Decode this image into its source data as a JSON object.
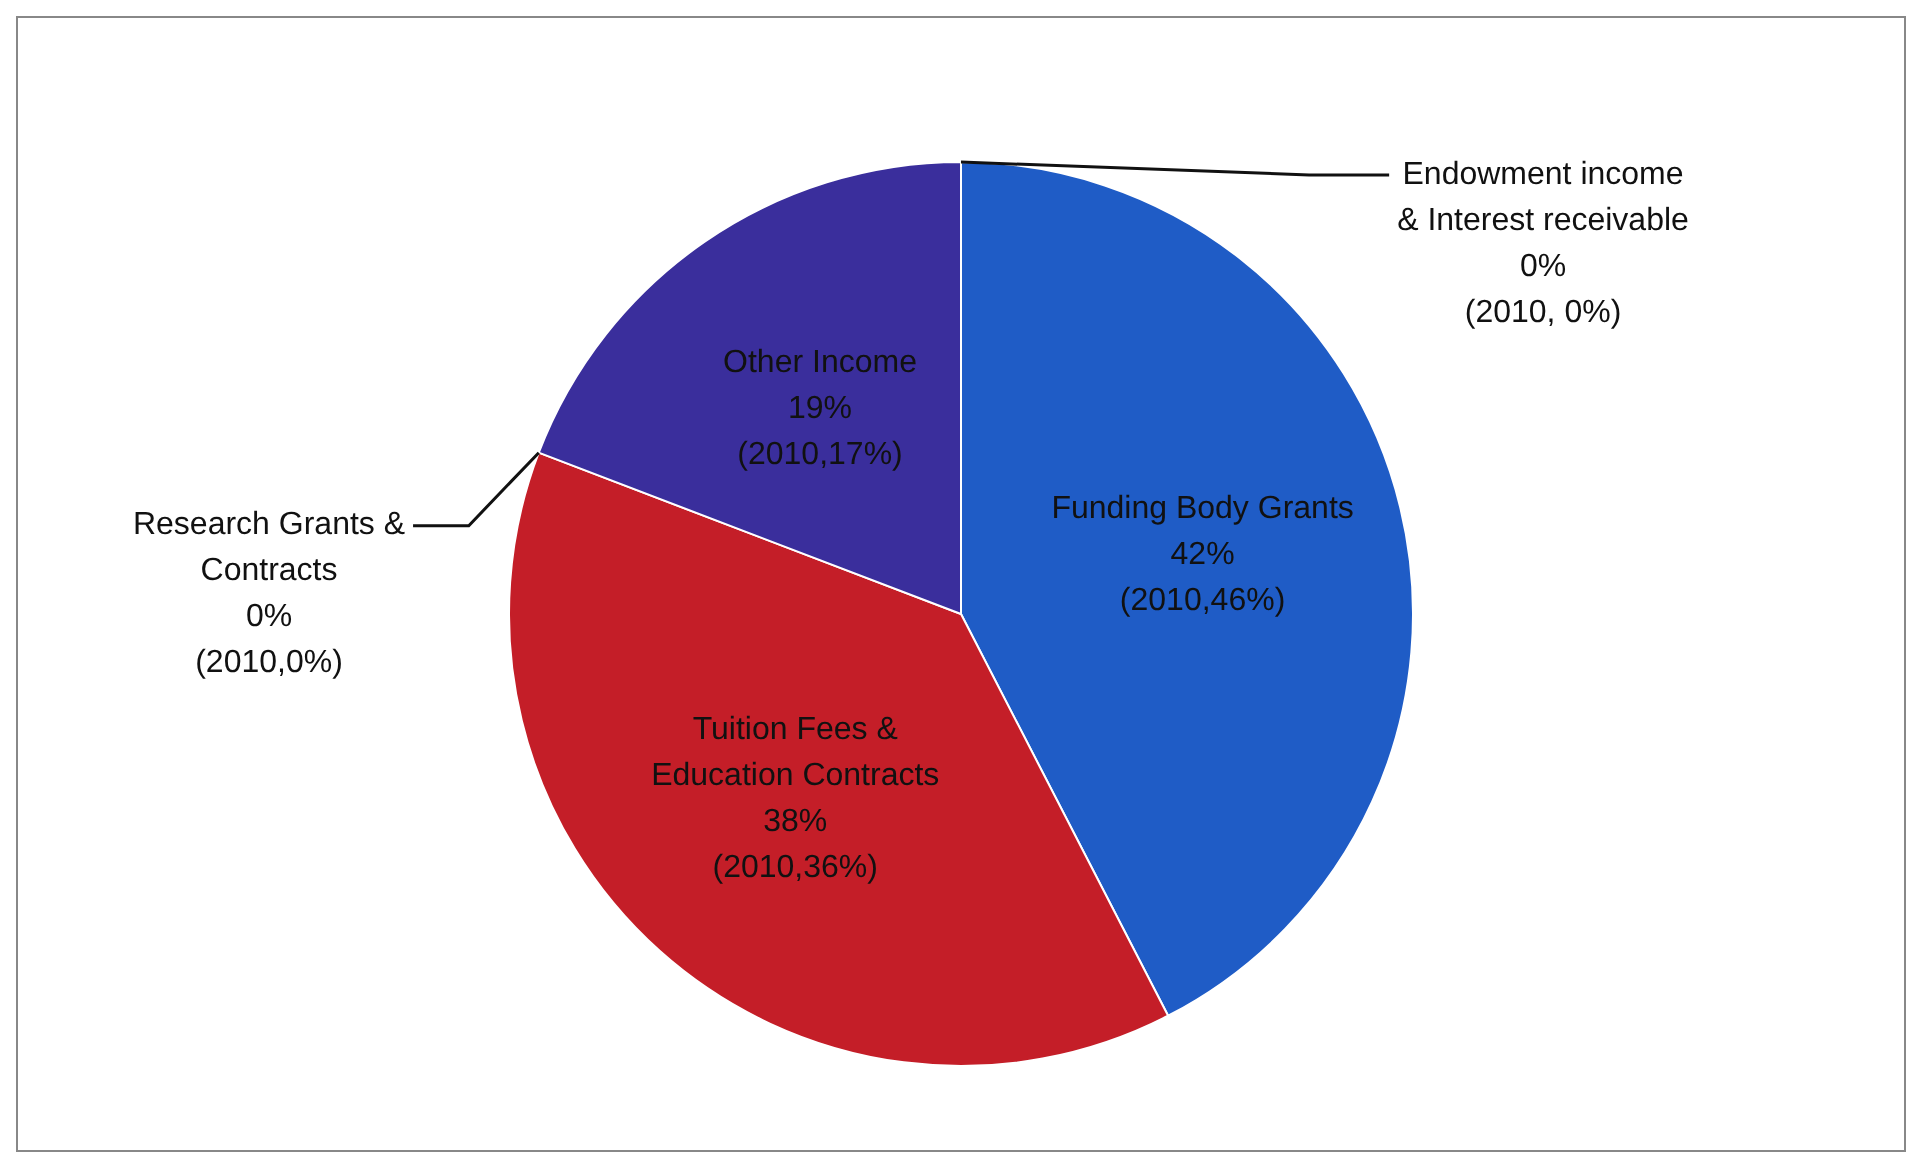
{
  "chart_data": {
    "type": "pie",
    "categories": [
      "Funding Body Grants",
      "Tuition Fees & Education Contracts",
      "Research Grants & Contracts",
      "Other Income",
      "Endowment income & Interest receivable"
    ],
    "values": [
      42,
      38,
      0,
      19,
      0
    ],
    "colors": [
      "#1f5cc6",
      "#c41e28",
      "#7bb24a",
      "#3a2e9c",
      "#2a4fb0"
    ],
    "value_labels": [
      "42%\n(2010,46%)",
      "38%\n(2010,36%)",
      "0%\n(2010,0%)",
      "19%\n(2010,17%)",
      "0%\n(2010, 0%)"
    ],
    "data_labels": true,
    "legend": false
  }
}
